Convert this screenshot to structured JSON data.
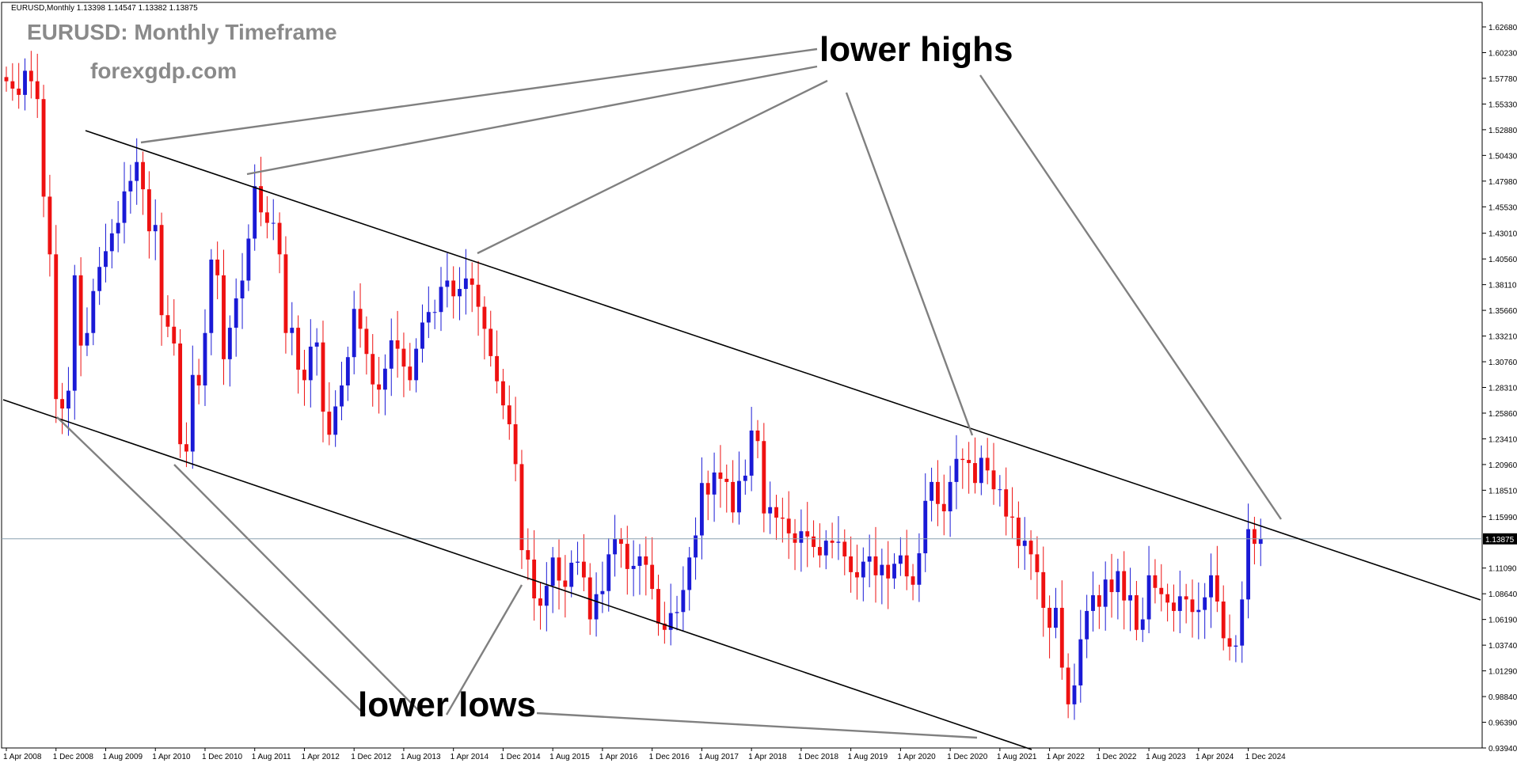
{
  "header": {
    "symbol_info": "EURUSD,Monthly  1.13398 1.14547 1.13382 1.13875"
  },
  "watermark": {
    "title": "EURUSD: Monthly Timeframe",
    "site": "forexgdp.com"
  },
  "annotations": {
    "lower_highs": "lower highs",
    "lower_lows": "lower lows"
  },
  "colors": {
    "bull": "#1a1ad6",
    "bear": "#ee1111",
    "trendline": "#000000",
    "pointer": "#808080",
    "price_line": "#8aa0b0",
    "current_price_bg": "#000000"
  },
  "chart_data": {
    "type": "candlestick",
    "symbol": "EURUSD",
    "timeframe": "Monthly",
    "current_price": "1.13875",
    "ylim": [
      0.9394,
      1.6502
    ],
    "y_ticks": [
      "1.62680",
      "1.60230",
      "1.57780",
      "1.55330",
      "1.52880",
      "1.50430",
      "1.47980",
      "1.45530",
      "1.43010",
      "1.40560",
      "1.38110",
      "1.35660",
      "1.33210",
      "1.30760",
      "1.28310",
      "1.25860",
      "1.23410",
      "1.20960",
      "1.18510",
      "1.15990",
      "1.13875",
      "1.11090",
      "1.08640",
      "1.06190",
      "1.03740",
      "1.01290",
      "0.98840",
      "0.96390",
      "0.93940"
    ],
    "x_ticks": [
      "1 Apr 2008",
      "1 Dec 2008",
      "1 Aug 2009",
      "1 Apr 2010",
      "1 Dec 2010",
      "1 Aug 2011",
      "1 Apr 2012",
      "1 Dec 2012",
      "1 Aug 2013",
      "1 Apr 2014",
      "1 Dec 2014",
      "1 Aug 2015",
      "1 Apr 2016",
      "1 Dec 2016",
      "1 Aug 2017",
      "1 Apr 2018",
      "1 Dec 2018",
      "1 Aug 2019",
      "1 Apr 2020",
      "1 Dec 2020",
      "1 Aug 2021",
      "1 Apr 2022",
      "1 Dec 2022",
      "1 Aug 2023",
      "1 Apr 2024",
      "1 Dec 2024"
    ],
    "series_closes": [
      1.575,
      1.568,
      1.562,
      1.585,
      1.575,
      1.558,
      1.465,
      1.41,
      1.272,
      1.263,
      1.28,
      1.39,
      1.323,
      1.335,
      1.375,
      1.398,
      1.413,
      1.43,
      1.44,
      1.47,
      1.48,
      1.498,
      1.472,
      1.432,
      1.438,
      1.352,
      1.341,
      1.325,
      1.229,
      1.222,
      1.295,
      1.285,
      1.335,
      1.405,
      1.39,
      1.31,
      1.34,
      1.368,
      1.385,
      1.425,
      1.475,
      1.45,
      1.44,
      1.44,
      1.41,
      1.335,
      1.34,
      1.3,
      1.29,
      1.322,
      1.326,
      1.26,
      1.238,
      1.265,
      1.285,
      1.312,
      1.358,
      1.339,
      1.315,
      1.286,
      1.281,
      1.301,
      1.328,
      1.32,
      1.303,
      1.29,
      1.32,
      1.345,
      1.355,
      1.355,
      1.379,
      1.385,
      1.37,
      1.377,
      1.387,
      1.381,
      1.36,
      1.339,
      1.313,
      1.289,
      1.266,
      1.248,
      1.21,
      1.128,
      1.119,
      1.082,
      1.075,
      1.094,
      1.121,
      1.099,
      1.093,
      1.116,
      1.117,
      1.102,
      1.062,
      1.086,
      1.089,
      1.124,
      1.139,
      1.134,
      1.11,
      1.113,
      1.122,
      1.114,
      1.091,
      1.058,
      1.052,
      1.068,
      1.069,
      1.09,
      1.121,
      1.142,
      1.192,
      1.181,
      1.202,
      1.196,
      1.193,
      1.164,
      1.194,
      1.199,
      1.242,
      1.232,
      1.163,
      1.169,
      1.159,
      1.158,
      1.144,
      1.135,
      1.146,
      1.141,
      1.131,
      1.123,
      1.137,
      1.135,
      1.136,
      1.122,
      1.107,
      1.102,
      1.117,
      1.122,
      1.104,
      1.114,
      1.101,
      1.115,
      1.123,
      1.103,
      1.095,
      1.125,
      1.175,
      1.193,
      1.172,
      1.165,
      1.193,
      1.215,
      1.214,
      1.211,
      1.192,
      1.216,
      1.204,
      1.186,
      1.186,
      1.16,
      1.159,
      1.132,
      1.137,
      1.124,
      1.107,
      1.073,
      1.054,
      1.073,
      1.016,
      0.981,
      0.999,
      1.043,
      1.07,
      1.085,
      1.074,
      1.1,
      1.088,
      1.108,
      1.08,
      1.085,
      1.052,
      1.062,
      1.104,
      1.092,
      1.086,
      1.078,
      1.07,
      1.084,
      1.081,
      1.069,
      1.071,
      1.083,
      1.104,
      1.079,
      1.044,
      1.036,
      1.037,
      1.081,
      1.148,
      1.134,
      1.139
    ]
  }
}
